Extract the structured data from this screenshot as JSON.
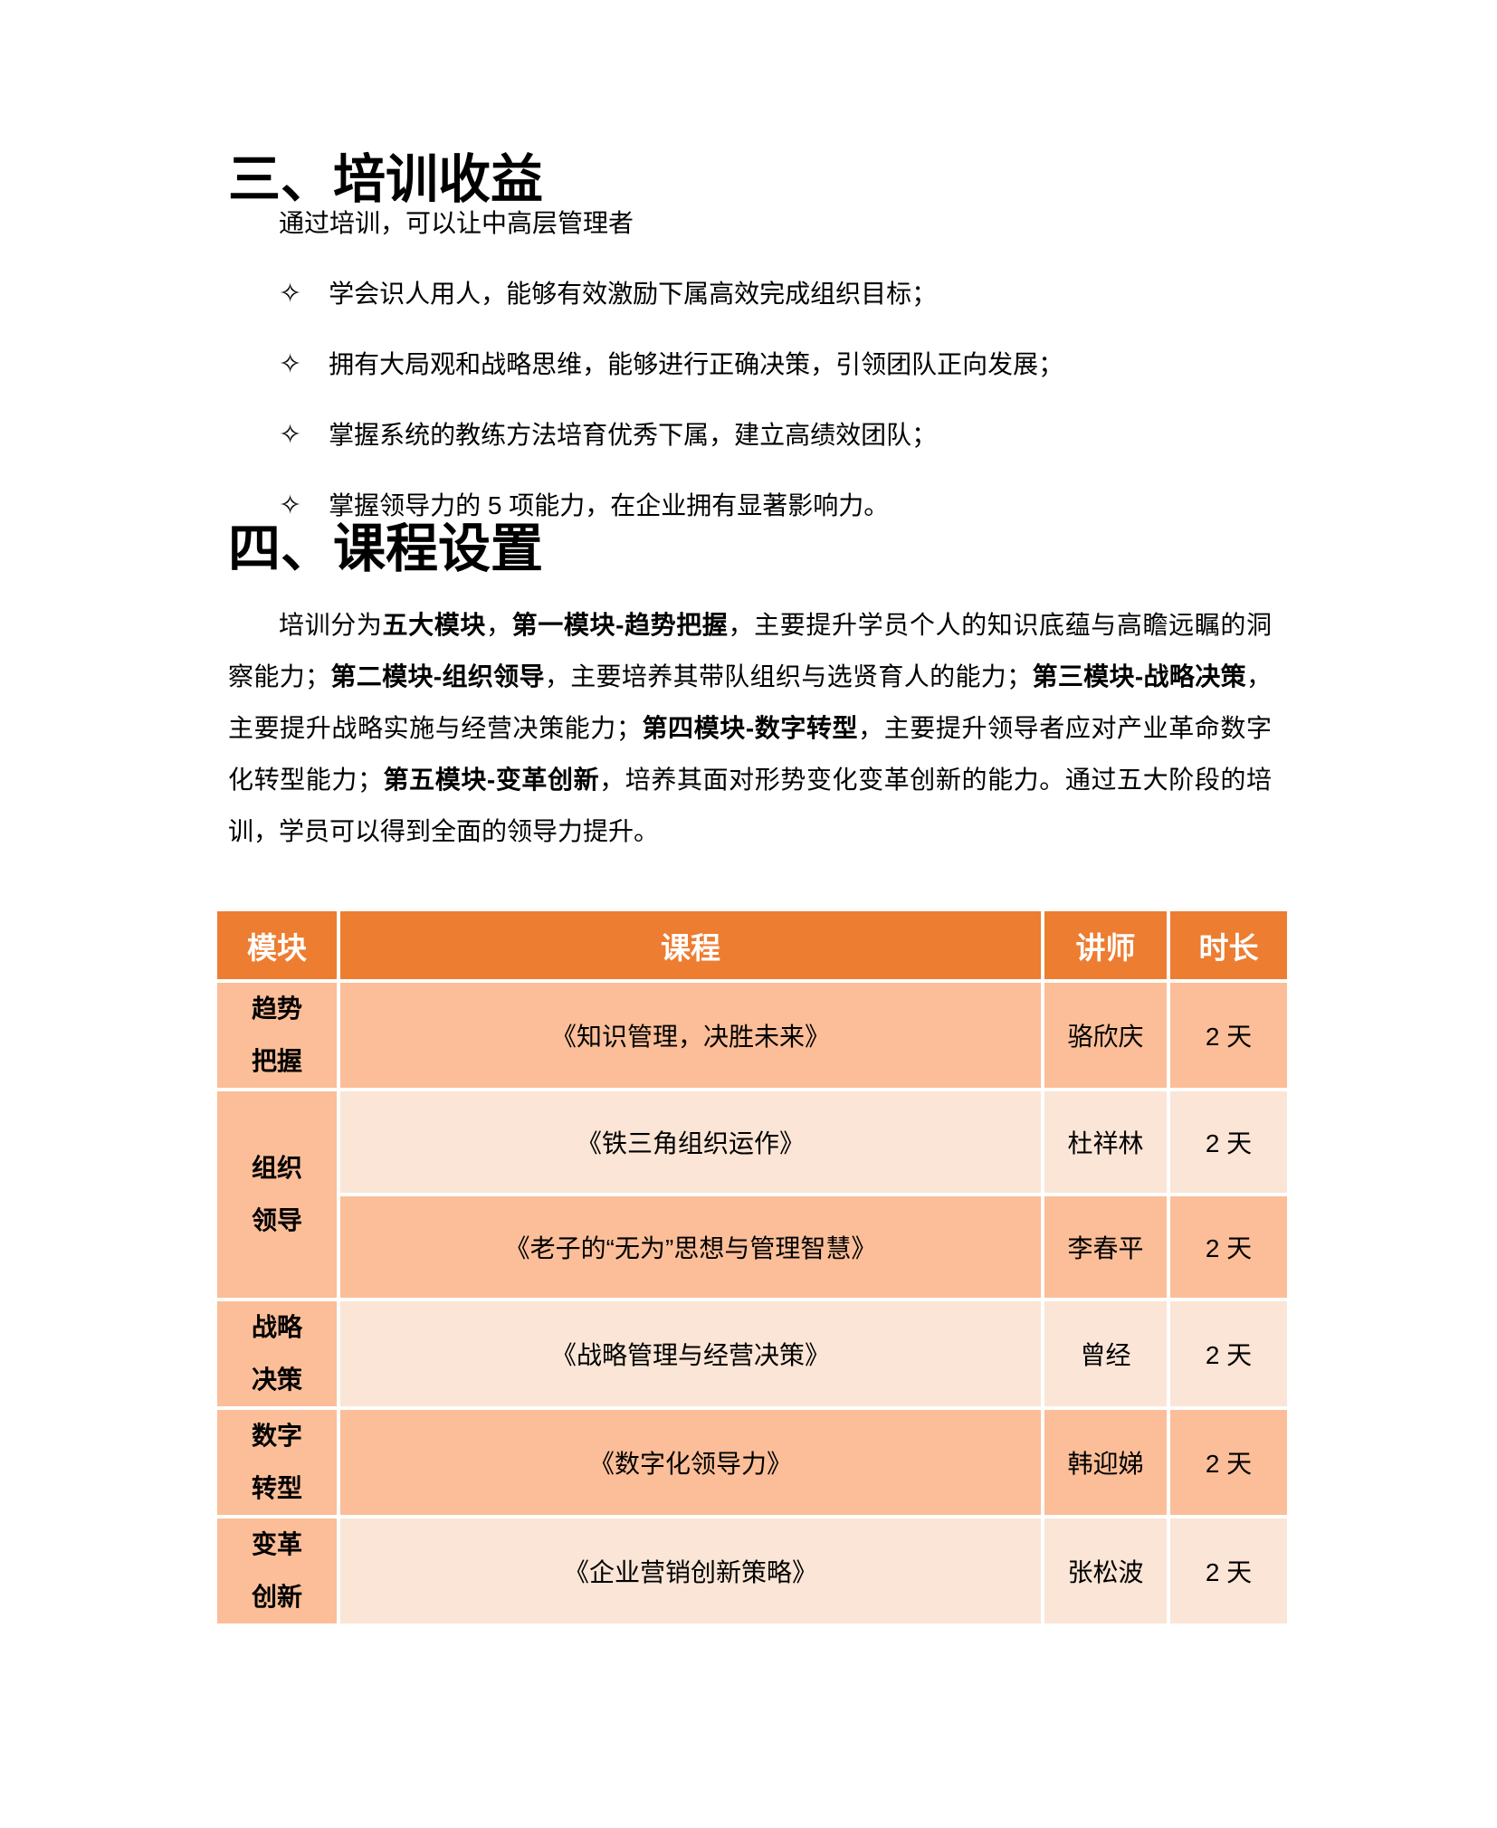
{
  "section3": {
    "title": "三、培训收益"
  },
  "benefits": {
    "intro": "通过培训，可以让中高层管理者",
    "bullet_icon": "✧",
    "items": [
      "学会识人用人，能够有效激励下属高效完成组织目标；",
      "拥有大局观和战略思维，能够进行正确决策，引领团队正向发展；",
      "掌握系统的教练方法培育优秀下属，建立高绩效团队；",
      "掌握领导力的 5 项能力，在企业拥有显著影响力。"
    ]
  },
  "section4": {
    "title": "四、课程设置"
  },
  "modules_paragraph": {
    "segments": [
      {
        "text": "培训分为",
        "bold": false
      },
      {
        "text": "五大模块",
        "bold": true
      },
      {
        "text": "，",
        "bold": false
      },
      {
        "text": "第一模块-趋势把握",
        "bold": true
      },
      {
        "text": "，主要提升学员个人的知识底蕴与高瞻远瞩的洞察能力；",
        "bold": false
      },
      {
        "text": "第二模块-组织领导",
        "bold": true
      },
      {
        "text": "，主要培养其带队组织与选贤育人的能力；",
        "bold": false
      },
      {
        "text": "第三模块-战略决策",
        "bold": true
      },
      {
        "text": "，主要提升战略实施与经营决策能力；",
        "bold": false
      },
      {
        "text": "第四模块-数字转型",
        "bold": true
      },
      {
        "text": "，主要提升领导者应对产业革命数字化转型能力；",
        "bold": false
      },
      {
        "text": "第五模块-变革创新",
        "bold": true
      },
      {
        "text": "，培养其面对形势变化变革创新的能力。通过五大阶段的培训，学员可以得到全面的领导力提升。",
        "bold": false
      }
    ]
  },
  "course_table": {
    "headers": [
      "模块",
      "课程",
      "讲师",
      "时长"
    ],
    "colors": {
      "header_bg": "#ED7D31",
      "header_text": "#FFFFFF",
      "row_dark": "#FBBE98",
      "row_light": "#FAE5D6"
    },
    "groups": [
      {
        "module": [
          "趋势",
          "把握"
        ],
        "courses": [
          {
            "title": "《知识管理，决胜未来》",
            "lecturer": "骆欣庆",
            "duration": "2 天"
          }
        ]
      },
      {
        "module": [
          "组织",
          "领导"
        ],
        "courses": [
          {
            "title": "《铁三角组织运作》",
            "lecturer": "杜祥林",
            "duration": "2 天"
          },
          {
            "title": "《老子的“无为”思想与管理智慧》",
            "lecturer": "李春平",
            "duration": "2 天"
          }
        ]
      },
      {
        "module": [
          "战略",
          "决策"
        ],
        "courses": [
          {
            "title": "《战略管理与经营决策》",
            "lecturer": "曾经",
            "duration": "2 天"
          }
        ]
      },
      {
        "module": [
          "数字",
          "转型"
        ],
        "courses": [
          {
            "title": "《数字化领导力》",
            "lecturer": "韩迎娣",
            "duration": "2 天"
          }
        ]
      },
      {
        "module": [
          "变革",
          "创新"
        ],
        "courses": [
          {
            "title": "《企业营销创新策略》",
            "lecturer": "张松波",
            "duration": "2 天"
          }
        ]
      }
    ]
  }
}
